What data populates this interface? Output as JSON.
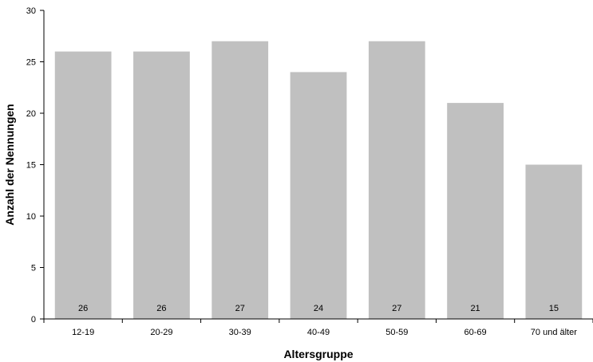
{
  "chart_data": {
    "type": "bar",
    "categories": [
      "12-19",
      "20-29",
      "30-39",
      "40-49",
      "50-59",
      "60-69",
      "70 und älter"
    ],
    "values": [
      26,
      26,
      27,
      24,
      27,
      21,
      15
    ],
    "data_labels": [
      "26",
      "26",
      "27",
      "24",
      "27",
      "21",
      "15"
    ],
    "xlabel": "Altersgruppe",
    "ylabel": "Anzahl der Nennungen",
    "ylim": [
      0,
      30
    ],
    "yticks": [
      0,
      5,
      10,
      15,
      20,
      25,
      30
    ],
    "ytick_labels": [
      "0",
      "5",
      "10",
      "15",
      "20",
      "25",
      "30"
    ],
    "grid": false,
    "bar_color": "#c0c0c0",
    "axis_color": "#000000"
  }
}
